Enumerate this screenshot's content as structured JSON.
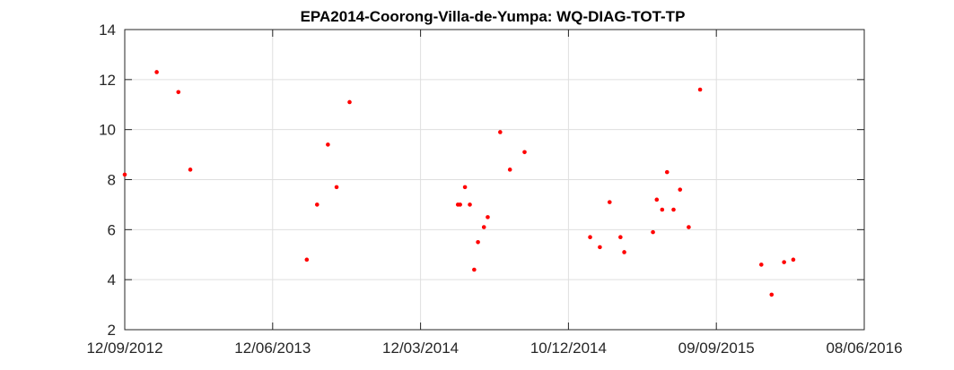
{
  "chart_data": {
    "type": "scatter",
    "title": "EPA2014-Coorong-Villa-de-Yumpa: WQ-DIAG-TOT-TP",
    "xlabel": "",
    "ylabel": "",
    "x_axis_type": "date",
    "xlim": [
      "2012-09-12",
      "2016-06-08"
    ],
    "ylim": [
      2,
      14
    ],
    "x_ticks": [
      "2012-09-12",
      "2013-06-12",
      "2014-03-12",
      "2014-12-10",
      "2015-09-09",
      "2016-06-08"
    ],
    "x_tick_labels": [
      "12/09/2012",
      "12/06/2013",
      "12/03/2014",
      "10/12/2014",
      "09/09/2015",
      "08/06/2016"
    ],
    "y_ticks": [
      2,
      4,
      6,
      8,
      10,
      12,
      14
    ],
    "y_tick_labels": [
      "2",
      "4",
      "6",
      "8",
      "10",
      "12",
      "14"
    ],
    "grid": true,
    "legend": "none",
    "marker_color": "#ff0000",
    "series": [
      {
        "points": [
          {
            "x": "2012-09-12",
            "y": 8.2
          },
          {
            "x": "2012-11-10",
            "y": 12.3
          },
          {
            "x": "2012-12-20",
            "y": 11.5
          },
          {
            "x": "2013-01-11",
            "y": 8.4
          },
          {
            "x": "2013-08-14",
            "y": 4.8
          },
          {
            "x": "2013-09-02",
            "y": 7.0
          },
          {
            "x": "2013-09-22",
            "y": 9.4
          },
          {
            "x": "2013-10-08",
            "y": 7.7
          },
          {
            "x": "2013-11-01",
            "y": 11.1
          },
          {
            "x": "2014-05-20",
            "y": 7.0
          },
          {
            "x": "2014-05-24",
            "y": 7.0
          },
          {
            "x": "2014-06-02",
            "y": 7.7
          },
          {
            "x": "2014-06-11",
            "y": 7.0
          },
          {
            "x": "2014-06-19",
            "y": 4.4
          },
          {
            "x": "2014-06-26",
            "y": 5.5
          },
          {
            "x": "2014-07-07",
            "y": 6.1
          },
          {
            "x": "2014-07-14",
            "y": 6.5
          },
          {
            "x": "2014-08-06",
            "y": 9.9
          },
          {
            "x": "2014-08-24",
            "y": 8.4
          },
          {
            "x": "2014-09-20",
            "y": 9.1
          },
          {
            "x": "2015-01-19",
            "y": 5.7
          },
          {
            "x": "2015-02-06",
            "y": 5.3
          },
          {
            "x": "2015-02-24",
            "y": 7.1
          },
          {
            "x": "2015-03-16",
            "y": 5.7
          },
          {
            "x": "2015-03-23",
            "y": 5.1
          },
          {
            "x": "2015-05-15",
            "y": 5.9
          },
          {
            "x": "2015-05-22",
            "y": 7.2
          },
          {
            "x": "2015-06-01",
            "y": 6.8
          },
          {
            "x": "2015-06-10",
            "y": 8.3
          },
          {
            "x": "2015-06-22",
            "y": 6.8
          },
          {
            "x": "2015-07-04",
            "y": 7.6
          },
          {
            "x": "2015-07-20",
            "y": 6.1
          },
          {
            "x": "2015-08-10",
            "y": 11.6
          },
          {
            "x": "2015-12-01",
            "y": 4.6
          },
          {
            "x": "2015-12-20",
            "y": 3.4
          },
          {
            "x": "2016-01-12",
            "y": 4.7
          },
          {
            "x": "2016-01-29",
            "y": 4.8
          }
        ]
      }
    ]
  }
}
